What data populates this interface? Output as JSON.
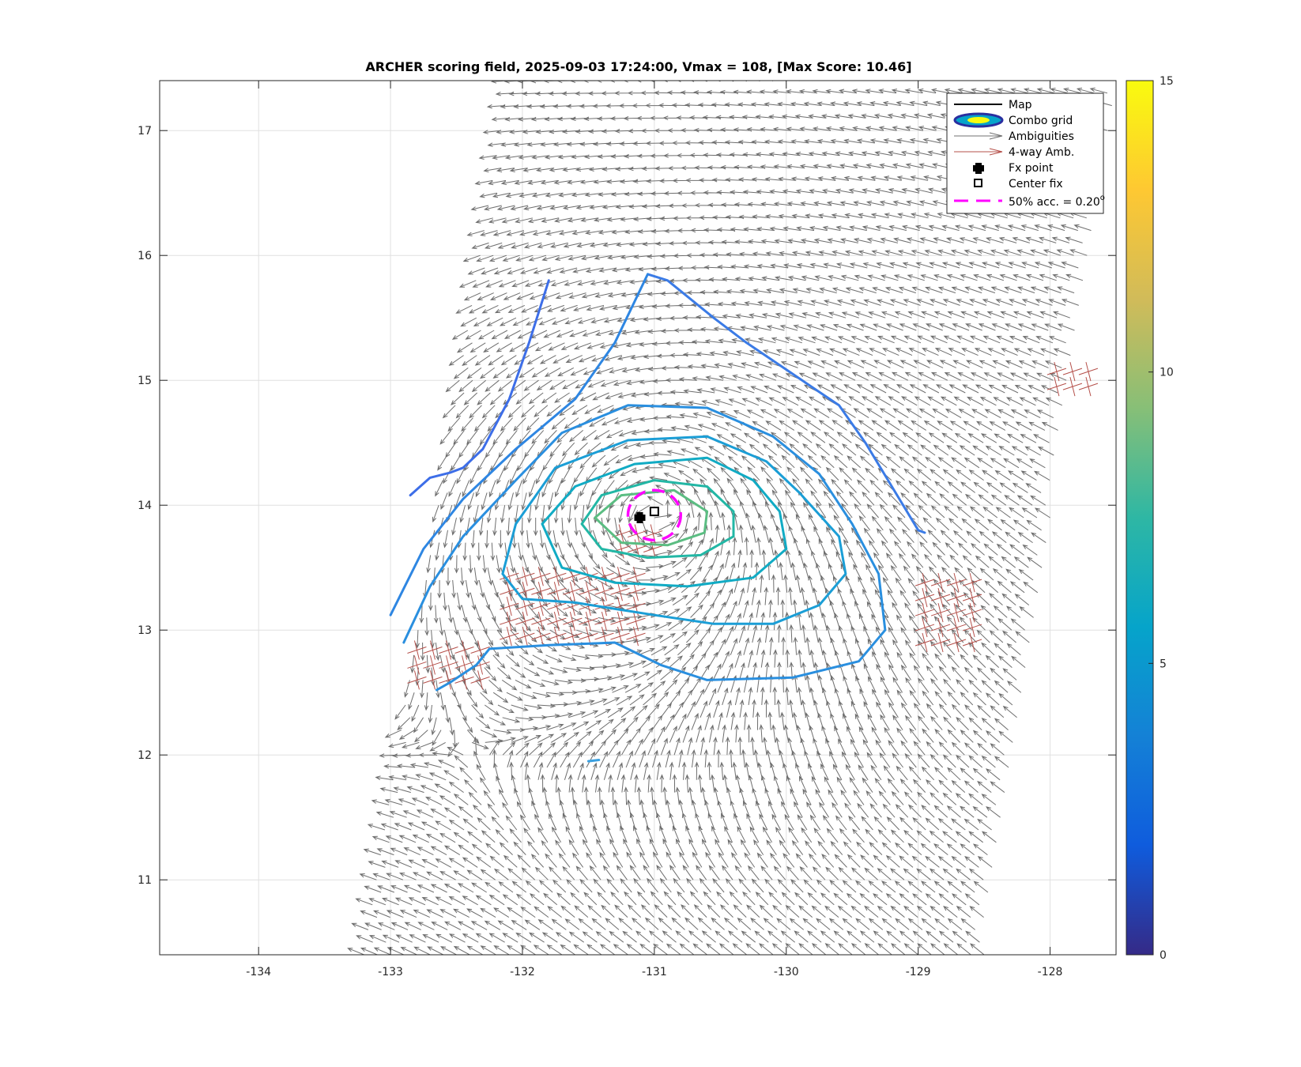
{
  "chart_data": {
    "type": "quiver-contour",
    "title": "ARCHER scoring field, 2025-09-03 17:24:00, Vmax = 108, [Max Score: 10.46]",
    "xlabel": "",
    "ylabel": "",
    "xlim": [
      -134.75,
      -127.5
    ],
    "ylim": [
      10.4,
      17.4
    ],
    "xticks": [
      -134,
      -133,
      -132,
      -131,
      -130,
      -129,
      -128
    ],
    "yticks": [
      11,
      12,
      13,
      14,
      15,
      16,
      17
    ],
    "grid": true,
    "colorbar": {
      "range": [
        0,
        15
      ],
      "ticks": [
        0,
        5,
        10,
        15
      ],
      "colormap": "parula",
      "colors": [
        "#352a87",
        "#0f5cdd",
        "#1481d6",
        "#06a4ca",
        "#2eb7a4",
        "#87bf77",
        "#d1bb59",
        "#fec832",
        "#f9fb0e"
      ]
    },
    "legend": {
      "placement": "top-right",
      "entries": [
        {
          "label": "Map",
          "symbol": "black-line"
        },
        {
          "label": "Combo grid",
          "symbol": "filled-ellipse"
        },
        {
          "label": "Ambiguities",
          "symbol": "gray-arrow"
        },
        {
          "label": "4-way Amb.",
          "symbol": "red-arrow"
        },
        {
          "label": "Fx point",
          "symbol": "black-cross"
        },
        {
          "label": "Center fix",
          "symbol": "black-square"
        },
        {
          "label": "50% acc. = 0.20",
          "superscript": "o",
          "symbol": "magenta-dashed"
        }
      ]
    },
    "fx_point": {
      "x": -131.11,
      "y": 13.9
    },
    "center_fix": {
      "x": -131.0,
      "y": 13.95
    },
    "accuracy_circle": {
      "cx": -131.0,
      "cy": 13.92,
      "r": 0.2
    },
    "vortex_center": {
      "x": -131.0,
      "y": 13.92
    },
    "swath": {
      "bottom_left": [
        -133.2,
        10.4
      ],
      "bottom_right": [
        -128.5,
        10.4
      ],
      "top_left": [
        -132.1,
        17.4
      ],
      "top_right": [
        -127.5,
        17.4
      ]
    },
    "contours": [
      {
        "level": 4.5,
        "color": "#3b7be6",
        "points": [
          [
            -131.05,
            15.85
          ],
          [
            -130.9,
            15.8
          ],
          [
            -130.55,
            15.5
          ],
          [
            -130.3,
            15.3
          ],
          [
            -129.95,
            15.05
          ],
          [
            -129.6,
            14.8
          ],
          [
            -129.4,
            14.5
          ],
          [
            -129.2,
            14.15
          ],
          [
            -129.0,
            13.8
          ],
          [
            -128.95,
            13.78
          ]
        ]
      },
      {
        "level": 4.0,
        "color": "#3d6ee8",
        "points": [
          [
            -132.85,
            14.08
          ],
          [
            -132.7,
            14.22
          ],
          [
            -132.55,
            14.26
          ],
          [
            -132.45,
            14.3
          ],
          [
            -132.3,
            14.45
          ],
          [
            -132.1,
            14.85
          ],
          [
            -131.95,
            15.3
          ],
          [
            -131.8,
            15.8
          ]
        ]
      },
      {
        "level": 5.0,
        "color": "#2e86e2",
        "points": [
          [
            -133.0,
            13.12
          ],
          [
            -132.75,
            13.65
          ],
          [
            -132.45,
            14.05
          ],
          [
            -132.05,
            14.45
          ],
          [
            -131.6,
            14.85
          ],
          [
            -131.3,
            15.3
          ],
          [
            -131.05,
            15.85
          ]
        ]
      },
      {
        "level": 5.5,
        "color": "#2a8fdf",
        "points": [
          [
            -132.9,
            12.9
          ],
          [
            -132.7,
            13.35
          ],
          [
            -132.45,
            13.75
          ],
          [
            -132.05,
            14.2
          ],
          [
            -131.7,
            14.58
          ],
          [
            -131.2,
            14.8
          ],
          [
            -130.6,
            14.78
          ],
          [
            -130.1,
            14.55
          ],
          [
            -129.75,
            14.25
          ],
          [
            -129.5,
            13.85
          ],
          [
            -129.3,
            13.45
          ],
          [
            -129.25,
            13.0
          ],
          [
            -129.45,
            12.75
          ],
          [
            -129.95,
            12.62
          ],
          [
            -130.6,
            12.6
          ],
          [
            -130.95,
            12.72
          ],
          [
            -131.3,
            12.9
          ],
          [
            -131.8,
            12.88
          ],
          [
            -132.25,
            12.85
          ],
          [
            -132.35,
            12.72
          ],
          [
            -132.55,
            12.58
          ],
          [
            -132.65,
            12.52
          ]
        ]
      },
      {
        "level": 6.5,
        "color": "#1b9ed6",
        "points": [
          [
            -132.15,
            13.45
          ],
          [
            -132.05,
            13.85
          ],
          [
            -131.75,
            14.3
          ],
          [
            -131.2,
            14.52
          ],
          [
            -130.6,
            14.55
          ],
          [
            -130.15,
            14.35
          ],
          [
            -129.9,
            14.1
          ],
          [
            -129.6,
            13.75
          ],
          [
            -129.55,
            13.45
          ],
          [
            -129.75,
            13.2
          ],
          [
            -130.1,
            13.05
          ],
          [
            -130.55,
            13.05
          ],
          [
            -131.0,
            13.12
          ],
          [
            -131.6,
            13.22
          ],
          [
            -132.0,
            13.25
          ],
          [
            -132.15,
            13.45
          ]
        ]
      },
      {
        "level": 7.2,
        "color": "#11abc4",
        "points": [
          [
            -131.85,
            13.85
          ],
          [
            -131.6,
            14.15
          ],
          [
            -131.15,
            14.33
          ],
          [
            -130.6,
            14.38
          ],
          [
            -130.25,
            14.2
          ],
          [
            -130.05,
            13.95
          ],
          [
            -130.0,
            13.65
          ],
          [
            -130.25,
            13.42
          ],
          [
            -130.75,
            13.35
          ],
          [
            -131.3,
            13.38
          ],
          [
            -131.7,
            13.5
          ],
          [
            -131.85,
            13.85
          ]
        ]
      },
      {
        "level": 8.2,
        "color": "#22b7a5",
        "points": [
          [
            -131.55,
            13.85
          ],
          [
            -131.4,
            14.08
          ],
          [
            -131.0,
            14.2
          ],
          [
            -130.6,
            14.15
          ],
          [
            -130.4,
            13.95
          ],
          [
            -130.4,
            13.75
          ],
          [
            -130.65,
            13.6
          ],
          [
            -131.05,
            13.58
          ],
          [
            -131.4,
            13.65
          ],
          [
            -131.55,
            13.85
          ]
        ]
      },
      {
        "level": 9.2,
        "color": "#5bbd82",
        "points": [
          [
            -131.45,
            13.9
          ],
          [
            -131.25,
            14.08
          ],
          [
            -130.85,
            14.12
          ],
          [
            -130.6,
            13.95
          ],
          [
            -130.62,
            13.78
          ],
          [
            -130.9,
            13.68
          ],
          [
            -131.25,
            13.7
          ],
          [
            -131.45,
            13.9
          ]
        ]
      },
      {
        "level": 9.0,
        "color": "#3aa0e0",
        "points": [
          [
            -131.5,
            11.95
          ],
          [
            -131.42,
            11.96
          ]
        ]
      }
    ],
    "four_way_regions": [
      {
        "x": [
          -132.1,
          -131.1
        ],
        "y": [
          12.95,
          13.45
        ]
      },
      {
        "x": [
          -132.8,
          -132.3
        ],
        "y": [
          12.6,
          12.9
        ]
      },
      {
        "x": [
          -128.95,
          -128.55
        ],
        "y": [
          12.9,
          13.45
        ]
      },
      {
        "x": [
          -127.95,
          -127.6
        ],
        "y": [
          14.95,
          15.15
        ]
      },
      {
        "x": [
          -131.25,
          -130.95
        ],
        "y": [
          13.65,
          13.85
        ]
      }
    ]
  }
}
